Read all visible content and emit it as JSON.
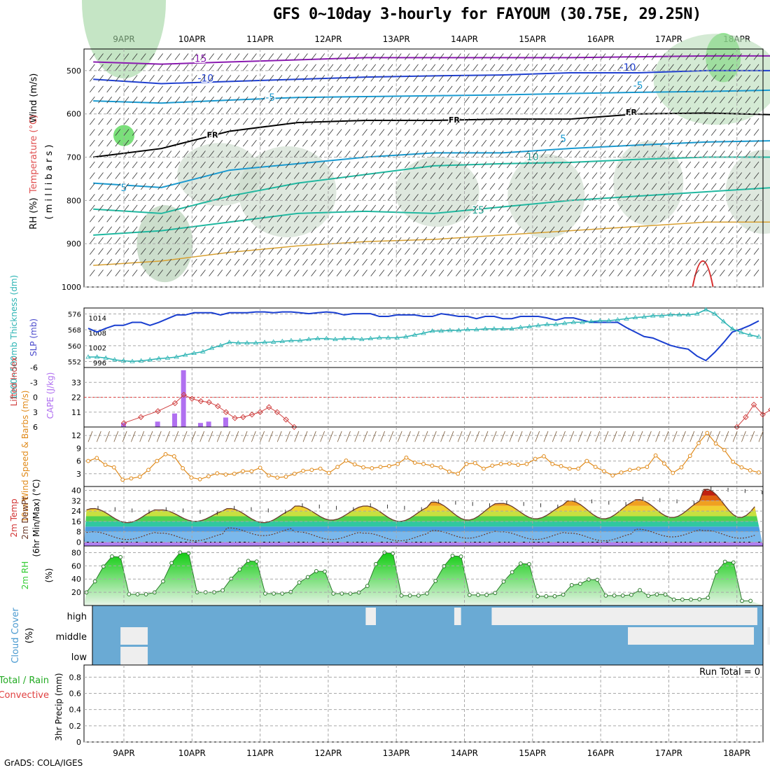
{
  "title": "GFS 0~10day 3-hourly for FAYOUM (30.75E, 29.25N)",
  "credit": "GrADS: COLA/IGES",
  "date_labels": [
    "9APR",
    "10APR",
    "11APR",
    "12APR",
    "13APR",
    "14APR",
    "15APR",
    "16APR",
    "17APR",
    "18APR"
  ],
  "colors": {
    "temp_line": "#1a3fd0",
    "thickness": "#2ab3b3",
    "lifted": "#d04040",
    "cape": "#b070f0",
    "wind": "#e08a1a",
    "barb": "#7a5a3a",
    "rh": "#33cc33",
    "cloud": "#6aaad4",
    "cloud_gap": "#eeeeee"
  },
  "chart_data": [
    {
      "type": "contour",
      "panel": "upper-air",
      "ylabel": "Wind (m/s)",
      "ylabel2": "Temperature (°C)",
      "ylabel3": "RH (%)",
      "ylabel4": "( m i l l i b a r s )",
      "y_ticks": [
        500,
        600,
        700,
        800,
        900,
        1000
      ],
      "ylim": [
        450,
        1000
      ],
      "isotherm_labels": [
        {
          "text": "-15",
          "day": 1.1,
          "p": 480
        },
        {
          "text": "-10",
          "day": 1.2,
          "p": 525
        },
        {
          "text": "-5",
          "day": 2.15,
          "p": 570
        },
        {
          "text": "FR",
          "day": 1.3,
          "p": 655
        },
        {
          "text": "FR",
          "day": 4.85,
          "p": 620
        },
        {
          "text": "5",
          "day": 0.0,
          "p": 778
        },
        {
          "text": "5",
          "day": 6.45,
          "p": 665
        },
        {
          "text": "10",
          "day": 6.0,
          "p": 707
        },
        {
          "text": "15",
          "day": 5.2,
          "p": 830
        },
        {
          "text": "-10",
          "day": 7.4,
          "p": 500
        },
        {
          "text": "-5",
          "day": 7.55,
          "p": 542
        },
        {
          "text": "FR",
          "day": 7.45,
          "p": 602
        }
      ]
    },
    {
      "type": "line",
      "panel": "pressure",
      "ylabel": "1000~500mb Thickness (dm)",
      "ylabel2": "SLP (mb)",
      "y_ticks": [
        552,
        560,
        568,
        576
      ],
      "y2_ticks": [
        996,
        1002,
        1008,
        1014
      ],
      "series": [
        {
          "name": "SLP (mb)",
          "values": [
            1009.8,
            1008.3,
            1009.8,
            1011.0,
            1011.0,
            1012.2,
            1012.2,
            1011.0,
            1012.2,
            1013.7,
            1015.2,
            1015.2,
            1016.1,
            1016.1,
            1016.1,
            1015.2,
            1016.1,
            1016.1,
            1016.1,
            1016.4,
            1016.4,
            1016.1,
            1016.4,
            1016.4,
            1016.1,
            1015.7,
            1016.1,
            1016.4,
            1016.1,
            1015.2,
            1015.7,
            1015.7,
            1015.7,
            1014.6,
            1014.6,
            1015.2,
            1015.2,
            1015.2,
            1014.6,
            1014.6,
            1015.7,
            1015.2,
            1014.6,
            1014.6,
            1013.7,
            1014.6,
            1014.6,
            1013.7,
            1013.7,
            1014.6,
            1014.6,
            1014.6,
            1014.0,
            1013.1,
            1014.0,
            1014.0,
            1013.1,
            1012.2,
            1012.2,
            1012.2,
            1012.2,
            1010.1,
            1008.3,
            1006.5,
            1005.9,
            1004.4,
            1002.9,
            1002.0,
            1001.4,
            998.6,
            996.8,
            1000.1,
            1004.0,
            1008.3,
            1009.5,
            1011.0,
            1012.8
          ]
        },
        {
          "name": "1000~500mb Thickness (dm)",
          "values": [
            554.3,
            554.3,
            553.8,
            552.9,
            552.4,
            552.1,
            552.4,
            552.9,
            553.5,
            553.8,
            554.3,
            555.3,
            556.2,
            557.0,
            558.8,
            560.1,
            561.7,
            561.4,
            561.4,
            561.4,
            561.7,
            561.9,
            562.2,
            562.6,
            562.6,
            563.2,
            563.6,
            563.6,
            563.2,
            563.6,
            563.6,
            563.2,
            563.6,
            564.0,
            564.0,
            564.0,
            564.5,
            565.4,
            566.3,
            567.4,
            567.4,
            567.7,
            567.7,
            568.1,
            568.1,
            568.5,
            568.5,
            568.5,
            568.5,
            569.2,
            569.6,
            570.2,
            570.7,
            570.7,
            571.3,
            571.8,
            571.8,
            572.2,
            572.6,
            572.6,
            573.1,
            573.6,
            574.2,
            574.5,
            575.1,
            575.1,
            575.6,
            575.6,
            575.6,
            576.1,
            578.2,
            576.1,
            572.2,
            568.5,
            566.7,
            565.4,
            564.5
          ]
        }
      ]
    },
    {
      "type": "bar",
      "panel": "instability",
      "ylabel": "Lifted Index",
      "ylabel2": "CAPE (J/kg)",
      "y_ticks": [
        "-6",
        "-3",
        "0",
        "3",
        "6"
      ],
      "y2_ticks": [
        11,
        22,
        33
      ],
      "cape_bars": [
        {
          "day": 0.0,
          "value": 3
        },
        {
          "day": 0.5,
          "value": 4
        },
        {
          "day": 0.75,
          "value": 10
        },
        {
          "day": 0.88,
          "value": 42
        },
        {
          "day": 1.13,
          "value": 3
        },
        {
          "day": 1.25,
          "value": 4
        },
        {
          "day": 1.5,
          "value": 7
        }
      ],
      "lifted_index": [
        {
          "day": 0.0,
          "value": 5.2
        },
        {
          "day": 0.25,
          "value": 4.0
        },
        {
          "day": 0.5,
          "value": 2.8
        },
        {
          "day": 0.75,
          "value": 1.2
        },
        {
          "day": 0.88,
          "value": -0.5
        },
        {
          "day": 1.0,
          "value": 0.3
        },
        {
          "day": 1.13,
          "value": 0.8
        },
        {
          "day": 1.25,
          "value": 1.0
        },
        {
          "day": 1.38,
          "value": 1.8
        },
        {
          "day": 1.5,
          "value": 3.0
        },
        {
          "day": 1.63,
          "value": 4.2
        },
        {
          "day": 1.75,
          "value": 4.0
        },
        {
          "day": 1.88,
          "value": 3.5
        },
        {
          "day": 2.0,
          "value": 3.0
        },
        {
          "day": 2.13,
          "value": 2.0
        },
        {
          "day": 2.25,
          "value": 3.0
        },
        {
          "day": 2.38,
          "value": 4.5
        },
        {
          "day": 2.5,
          "value": 6.0
        }
      ],
      "lifted_index_2": [
        {
          "day": 9.0,
          "value": 6.0
        },
        {
          "day": 9.13,
          "value": 4.0
        },
        {
          "day": 9.25,
          "value": 1.5
        },
        {
          "day": 9.38,
          "value": 3.5
        },
        {
          "day": 9.5,
          "value": 2.5
        },
        {
          "day": 9.63,
          "value": 4.0
        },
        {
          "day": 9.75,
          "value": 5.0
        },
        {
          "day": 9.88,
          "value": 2.5
        },
        {
          "day": 10.0,
          "value": 4.0
        },
        {
          "day": 10.13,
          "value": 5.2
        },
        {
          "day": 10.25,
          "value": 6.0
        }
      ]
    },
    {
      "type": "line",
      "panel": "wind10m",
      "ylabel": "10m Wind Speed & Barbs (m/s)",
      "y_ticks": [
        3,
        6,
        9,
        12
      ],
      "values": [
        6.0,
        6.7,
        5.1,
        4.5,
        1.6,
        1.9,
        2.3,
        3.9,
        6.0,
        7.6,
        7.1,
        4.3,
        2.1,
        1.7,
        2.4,
        3.1,
        2.8,
        3.0,
        3.6,
        3.6,
        4.4,
        2.6,
        2.1,
        2.3,
        3.0,
        3.7,
        3.9,
        4.2,
        3.2,
        4.6,
        6.1,
        5.2,
        4.5,
        4.3,
        4.6,
        4.8,
        5.3,
        6.8,
        5.6,
        5.3,
        4.9,
        4.5,
        3.5,
        3.0,
        5.3,
        5.5,
        4.2,
        4.9,
        5.3,
        5.4,
        5.1,
        5.3,
        6.5,
        7.1,
        5.3,
        4.8,
        4.2,
        4.2,
        6.0,
        4.6,
        3.6,
        2.6,
        3.3,
        3.9,
        4.2,
        4.6,
        7.3,
        5.4,
        3.2,
        4.5,
        7.2,
        10.2,
        12.6,
        10.1,
        8.6,
        5.8,
        4.5,
        3.8,
        3.3
      ]
    },
    {
      "type": "area",
      "panel": "temperature",
      "ylabel": "2m Temp",
      "ylabel2": "2m DewPt",
      "ylabel3": "(6hr Min/Max) (°C)",
      "y_ticks": [
        0,
        8,
        16,
        24,
        32,
        40
      ],
      "temp_min_max": [
        [
          15,
          26
        ],
        [
          16,
          25
        ],
        [
          15,
          26
        ],
        [
          17,
          28
        ],
        [
          16,
          28
        ],
        [
          17,
          31
        ],
        [
          18,
          30
        ],
        [
          18,
          32
        ],
        [
          19,
          33
        ],
        [
          19,
          41
        ]
      ],
      "dewpoint": [
        5,
        4,
        8,
        5,
        4,
        6,
        5,
        4,
        7,
        6
      ]
    },
    {
      "type": "area",
      "panel": "rh",
      "ylabel": "2m RH",
      "ylabel2": "(%)",
      "y_ticks": [
        20,
        40,
        60,
        80
      ],
      "peaks": [
        76,
        82,
        69,
        53,
        82,
        77,
        65,
        40,
        17,
        68
      ],
      "troughs": [
        17,
        20,
        18,
        18,
        15,
        16,
        14,
        15,
        9,
        7
      ]
    },
    {
      "type": "heatmap",
      "panel": "cloud",
      "ylabel": "Cloud Cover",
      "ylabel2": "(%)",
      "levels": [
        "high",
        "middle",
        "low"
      ],
      "clear_segments": [
        {
          "level": "high",
          "from": 3.55,
          "to": 3.7
        },
        {
          "level": "high",
          "from": 4.85,
          "to": 4.95
        },
        {
          "level": "high",
          "from": 5.4,
          "to": 9.3
        },
        {
          "level": "middle",
          "from": -0.05,
          "to": 0.35
        },
        {
          "level": "middle",
          "from": 7.4,
          "to": 9.25
        },
        {
          "level": "middle",
          "from": 9.45,
          "to": 9.6
        },
        {
          "level": "low",
          "from": -0.05,
          "to": 0.35
        }
      ]
    },
    {
      "type": "bar",
      "panel": "precip",
      "ylabel": "Total / Rain",
      "ylabel2": "Convective",
      "ylabel3": "3hr Precip (mm)",
      "y_ticks": [
        "0",
        "0.2",
        "0.4",
        "0.6",
        "0.8"
      ],
      "run_total_label": "Run Total = 0",
      "values": []
    }
  ]
}
